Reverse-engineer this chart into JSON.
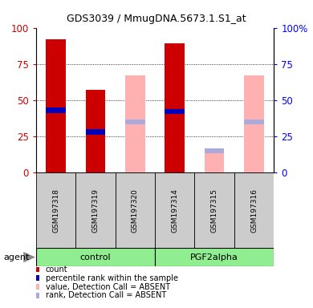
{
  "title": "GDS3039 / MmugDNA.5673.1.S1_at",
  "samples": [
    "GSM197318",
    "GSM197319",
    "GSM197320",
    "GSM197314",
    "GSM197315",
    "GSM197316"
  ],
  "group_labels": [
    "control",
    "PGF2alpha"
  ],
  "red_bars": [
    92,
    57,
    null,
    89,
    null,
    null
  ],
  "pink_bars": [
    null,
    null,
    67,
    null,
    15,
    67
  ],
  "blue_markers": [
    43,
    28,
    null,
    42,
    null,
    null
  ],
  "light_blue_markers": [
    null,
    null,
    35,
    null,
    15,
    35
  ],
  "ylim": [
    0,
    100
  ],
  "yticks": [
    0,
    25,
    50,
    75,
    100
  ],
  "red_color": "#CC0000",
  "pink_color": "#FFB0B0",
  "blue_color": "#0000BB",
  "light_blue_color": "#AAAADD",
  "group_bg_color": "#90EE90",
  "sample_bg_color": "#CCCCCC",
  "legend_items": [
    {
      "color": "#CC0000",
      "label": "count"
    },
    {
      "color": "#0000BB",
      "label": "percentile rank within the sample"
    },
    {
      "color": "#FFB0B0",
      "label": "value, Detection Call = ABSENT"
    },
    {
      "color": "#AAAADD",
      "label": "rank, Detection Call = ABSENT"
    }
  ]
}
